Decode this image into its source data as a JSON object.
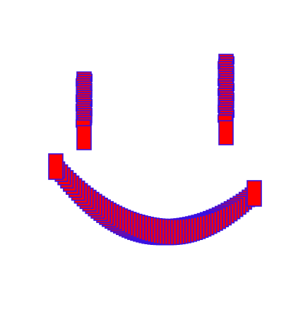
{
  "scene": {
    "subject": "smiley-face",
    "background_color": "#ffffff",
    "fill_color": "#ff0000",
    "stroke_color": "#3a10e0",
    "parts": [
      {
        "name": "left-eye",
        "block_count": 22
      },
      {
        "name": "right-eye",
        "block_count": 26
      },
      {
        "name": "smile",
        "block_count": 70
      }
    ]
  }
}
